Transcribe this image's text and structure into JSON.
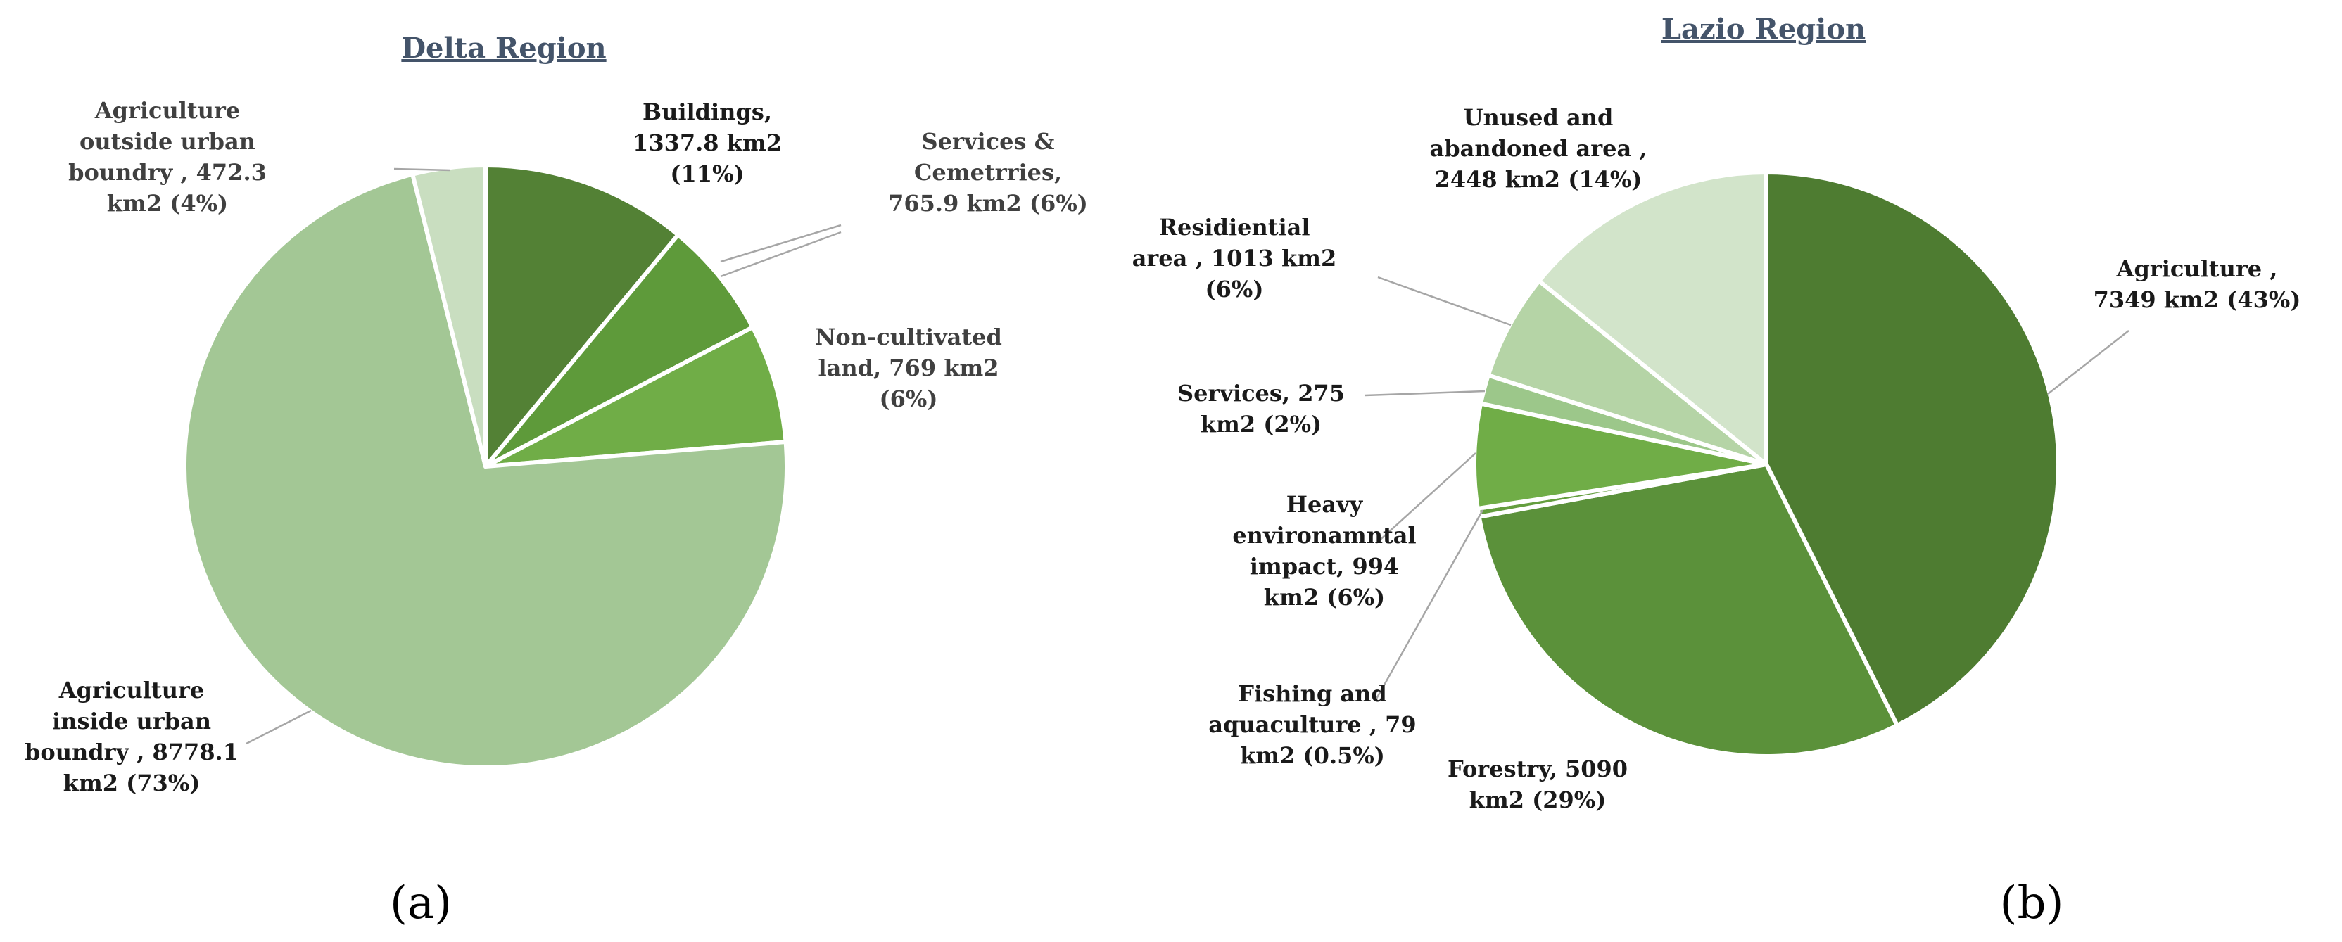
{
  "chart_data": [
    {
      "type": "pie",
      "title": "Delta Region",
      "panel_label": "(a)",
      "slices": [
        {
          "name": "Buildings",
          "value": 1337.8,
          "unit": "km2",
          "percent": "11%",
          "color": "#538135",
          "label_lines": [
            "Buildings,",
            "1337.8 km2",
            "(11%)"
          ]
        },
        {
          "name": "Services & Cemetrries",
          "value": 765.9,
          "unit": "km2",
          "percent": "6%",
          "color": "#5E9A3A",
          "label_lines": [
            "Services &",
            "Cemetrries,",
            "765.9 km2 (6%)"
          ]
        },
        {
          "name": "Non-cultivated land",
          "value": 769,
          "unit": "km2",
          "percent": "6%",
          "color": "#70AD47",
          "label_lines": [
            "Non-cultivated",
            "land, 769 km2",
            "(6%)"
          ]
        },
        {
          "name": "Agriculture inside urban boundry",
          "value": 8778.1,
          "unit": "km2",
          "percent": "73%",
          "color": "#A3C795",
          "label_lines": [
            "Agriculture",
            "inside urban",
            "boundry , 8778.1",
            "km2 (73%)"
          ]
        },
        {
          "name": "Agriculture outside urban boundry",
          "value": 472.3,
          "unit": "km2",
          "percent": "4%",
          "color": "#C9DEC0",
          "label_lines": [
            "Agriculture",
            "outside urban",
            "boundry , 472.3",
            "km2 (4%)"
          ]
        }
      ]
    },
    {
      "type": "pie",
      "title": "Lazio Region",
      "panel_label": "(b)",
      "slices": [
        {
          "name": "Agriculture",
          "value": 7349,
          "unit": "km2",
          "percent": "43%",
          "color": "#4E7C31",
          "label_lines": [
            "Agriculture ,",
            "7349 km2 (43%)"
          ]
        },
        {
          "name": "Forestry",
          "value": 5090,
          "unit": "km2",
          "percent": "29%",
          "color": "#5B913A",
          "label_lines": [
            "Forestry, 5090",
            "km2 (29%)"
          ]
        },
        {
          "name": "Fishing and aquaculture",
          "value": 79,
          "unit": "km2",
          "percent": "0.5%",
          "color": "#649E3E",
          "label_lines": [
            "Fishing and",
            "aquaculture , 79",
            "km2 (0.5%)"
          ]
        },
        {
          "name": "Heavy environamntal impact",
          "value": 994,
          "unit": "km2",
          "percent": "6%",
          "color": "#70AD47",
          "label_lines": [
            "Heavy",
            "environamntal",
            "impact, 994",
            "km2 (6%)"
          ]
        },
        {
          "name": "Services",
          "value": 275,
          "unit": "km2",
          "percent": "2%",
          "color": "#9CC78A",
          "label_lines": [
            "Services, 275",
            "km2 (2%)"
          ]
        },
        {
          "name": "Residiential area",
          "value": 1013,
          "unit": "km2",
          "percent": "6%",
          "color": "#B5D4A6",
          "label_lines": [
            "Residiential",
            "area , 1013 km2",
            "(6%)"
          ]
        },
        {
          "name": "Unused and abandoned area",
          "value": 2448,
          "unit": "km2",
          "percent": "14%",
          "color": "#D2E4CA",
          "label_lines": [
            "Unused and",
            "abandoned area ,",
            "2448 km2 (14%)"
          ]
        }
      ]
    }
  ]
}
